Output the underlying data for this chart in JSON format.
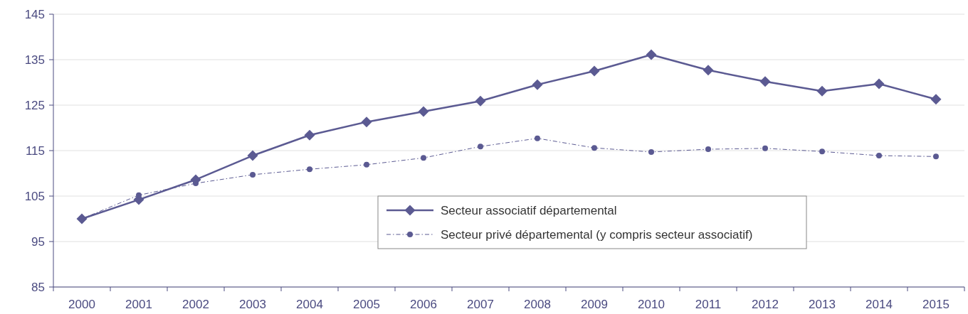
{
  "chart_data": {
    "type": "line",
    "categories": [
      "2000",
      "2001",
      "2002",
      "2003",
      "2004",
      "2005",
      "2006",
      "2007",
      "2008",
      "2009",
      "2010",
      "2011",
      "2012",
      "2013",
      "2014",
      "2015"
    ],
    "series": [
      {
        "name": "Secteur associatif départemental",
        "color": "#5b5a92",
        "marker": "diamond",
        "line_style": "solid",
        "values": [
          100,
          104.2,
          108.6,
          113.9,
          118.4,
          121.3,
          123.6,
          125.9,
          129.5,
          132.5,
          136.1,
          132.7,
          130.2,
          128.1,
          129.7,
          126.3
        ]
      },
      {
        "name": "Secteur privé départemental (y compris secteur associatif)",
        "color": "#5b5a92",
        "marker": "circle",
        "line_style": "dashed",
        "values": [
          100,
          105.2,
          107.8,
          109.7,
          110.9,
          111.9,
          113.4,
          115.9,
          117.7,
          115.6,
          114.7,
          115.3,
          115.5,
          114.8,
          113.9,
          113.7
        ]
      }
    ],
    "ylim": [
      85,
      145
    ],
    "yticks": [
      85,
      95,
      105,
      115,
      125,
      135,
      145
    ],
    "grid": "y",
    "legend": "bottom"
  }
}
